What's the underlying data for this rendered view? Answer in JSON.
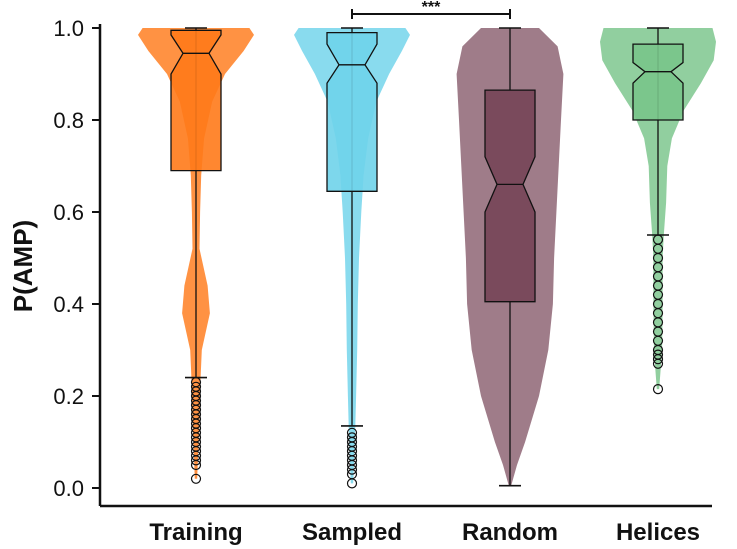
{
  "chart_data": {
    "type": "violin",
    "ylabel": "P(AMP)",
    "ylim": [
      0.0,
      1.0
    ],
    "yticks": [
      "0.0",
      "0.2",
      "0.4",
      "0.6",
      "0.8",
      "1.0"
    ],
    "categories": [
      "Training",
      "Sampled",
      "Random",
      "Helices"
    ],
    "colors": {
      "Training": "#ff7a1a",
      "Sampled": "#6fd3ea",
      "Random": "#7a4a5c",
      "Helices": "#79c48a"
    },
    "series": [
      {
        "name": "Training",
        "q1": 0.69,
        "median": 0.945,
        "q3": 0.995,
        "notch_low": 0.9,
        "notch_high": 0.985,
        "whisker_low": 0.24,
        "whisker_high": 1.0,
        "outliers": [
          0.23,
          0.22,
          0.21,
          0.2,
          0.19,
          0.18,
          0.17,
          0.16,
          0.15,
          0.14,
          0.13,
          0.12,
          0.11,
          0.1,
          0.09,
          0.08,
          0.07,
          0.06,
          0.05,
          0.02
        ]
      },
      {
        "name": "Sampled",
        "q1": 0.645,
        "median": 0.92,
        "q3": 0.99,
        "notch_low": 0.88,
        "notch_high": 0.965,
        "whisker_low": 0.135,
        "whisker_high": 1.0,
        "outliers": [
          0.12,
          0.11,
          0.1,
          0.09,
          0.08,
          0.07,
          0.06,
          0.05,
          0.04,
          0.03,
          0.01
        ]
      },
      {
        "name": "Random",
        "q1": 0.405,
        "median": 0.66,
        "q3": 0.865,
        "notch_low": 0.6,
        "notch_high": 0.72,
        "whisker_low": 0.005,
        "whisker_high": 1.0,
        "outliers": []
      },
      {
        "name": "Helices",
        "q1": 0.8,
        "median": 0.905,
        "q3": 0.965,
        "notch_low": 0.88,
        "notch_high": 0.925,
        "whisker_low": 0.55,
        "whisker_high": 1.0,
        "outliers": [
          0.54,
          0.52,
          0.5,
          0.48,
          0.46,
          0.44,
          0.42,
          0.4,
          0.38,
          0.36,
          0.34,
          0.32,
          0.3,
          0.29,
          0.28,
          0.27,
          0.215
        ]
      }
    ],
    "significance": {
      "between": [
        "Sampled",
        "Random"
      ],
      "label": "***",
      "y": 1.03
    }
  }
}
